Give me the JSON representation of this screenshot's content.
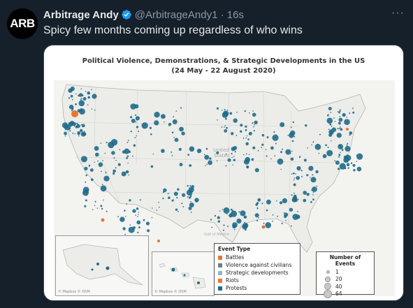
{
  "tweet": {
    "avatar_text": "ARB",
    "display_name": "Arbitrage Andy",
    "handle": "@ArbitrageAndy1 · 16s",
    "more": "···",
    "text": "Spicy few months coming up regardless of who wins"
  },
  "chart": {
    "title_line1": "Political Violence, Demonstrations, & Strategic Developments in the US",
    "title_line2": "(24 May - 22 August 2020)",
    "legend_title": "Event Type",
    "event_types": [
      {
        "label": "Battles",
        "color": "#e8772e"
      },
      {
        "label": "Violence against civilians",
        "color": "#6f7f8a"
      },
      {
        "label": "Strategic developments",
        "color": "#8fb7c7"
      },
      {
        "label": "Riots",
        "color": "#e8772e"
      },
      {
        "label": "Protests",
        "color": "#1f6b8a"
      }
    ],
    "size_legend_title": "Number of Events",
    "sizes": [
      "1",
      "20",
      "40",
      "64"
    ],
    "credit": "© Mapbox © OSM"
  }
}
